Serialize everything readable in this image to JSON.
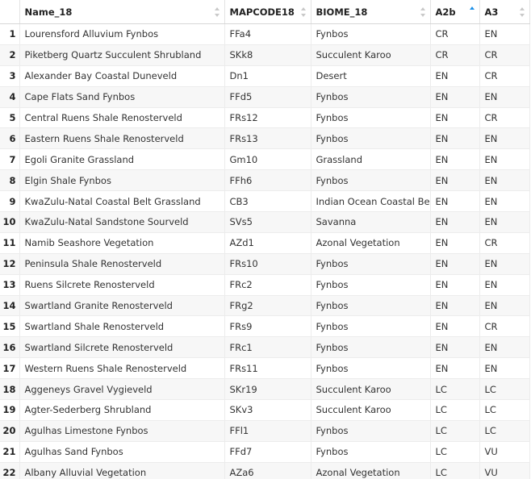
{
  "columns": [
    {
      "label": "",
      "sort": "none"
    },
    {
      "label": "Name_18",
      "sort": "none"
    },
    {
      "label": "MAPCODE18",
      "sort": "none"
    },
    {
      "label": "BIOME_18",
      "sort": "none"
    },
    {
      "label": "A2b",
      "sort": "ascending"
    },
    {
      "label": "A3",
      "sort": "none"
    }
  ],
  "accent_color": "#1a8fe8",
  "rows": [
    [
      "1",
      "Lourensford Alluvium Fynbos",
      "FFa4",
      "Fynbos",
      "CR",
      "EN"
    ],
    [
      "2",
      "Piketberg Quartz Succulent Shrubland",
      "SKk8",
      "Succulent Karoo",
      "CR",
      "CR"
    ],
    [
      "3",
      "Alexander Bay Coastal Duneveld",
      "Dn1",
      "Desert",
      "EN",
      "CR"
    ],
    [
      "4",
      "Cape Flats Sand Fynbos",
      "FFd5",
      "Fynbos",
      "EN",
      "EN"
    ],
    [
      "5",
      "Central Ruens Shale Renosterveld",
      "FRs12",
      "Fynbos",
      "EN",
      "CR"
    ],
    [
      "6",
      "Eastern Ruens Shale Renosterveld",
      "FRs13",
      "Fynbos",
      "EN",
      "EN"
    ],
    [
      "7",
      "Egoli Granite Grassland",
      "Gm10",
      "Grassland",
      "EN",
      "EN"
    ],
    [
      "8",
      "Elgin Shale Fynbos",
      "FFh6",
      "Fynbos",
      "EN",
      "EN"
    ],
    [
      "9",
      "KwaZulu-Natal Coastal Belt Grassland",
      "CB3",
      "Indian Ocean Coastal Belt",
      "EN",
      "EN"
    ],
    [
      "10",
      "KwaZulu-Natal Sandstone Sourveld",
      "SVs5",
      "Savanna",
      "EN",
      "EN"
    ],
    [
      "11",
      "Namib Seashore Vegetation",
      "AZd1",
      "Azonal Vegetation",
      "EN",
      "CR"
    ],
    [
      "12",
      "Peninsula Shale Renosterveld",
      "FRs10",
      "Fynbos",
      "EN",
      "EN"
    ],
    [
      "13",
      "Ruens Silcrete Renosterveld",
      "FRc2",
      "Fynbos",
      "EN",
      "EN"
    ],
    [
      "14",
      "Swartland Granite Renosterveld",
      "FRg2",
      "Fynbos",
      "EN",
      "EN"
    ],
    [
      "15",
      "Swartland Shale Renosterveld",
      "FRs9",
      "Fynbos",
      "EN",
      "CR"
    ],
    [
      "16",
      "Swartland Silcrete Renosterveld",
      "FRc1",
      "Fynbos",
      "EN",
      "EN"
    ],
    [
      "17",
      "Western Ruens Shale Renosterveld",
      "FRs11",
      "Fynbos",
      "EN",
      "EN"
    ],
    [
      "18",
      "Aggeneys Gravel Vygieveld",
      "SKr19",
      "Succulent Karoo",
      "LC",
      "LC"
    ],
    [
      "19",
      "Agter-Sederberg Shrubland",
      "SKv3",
      "Succulent Karoo",
      "LC",
      "LC"
    ],
    [
      "20",
      "Agulhas Limestone Fynbos",
      "FFl1",
      "Fynbos",
      "LC",
      "LC"
    ],
    [
      "21",
      "Agulhas Sand Fynbos",
      "FFd7",
      "Fynbos",
      "LC",
      "VU"
    ],
    [
      "22",
      "Albany Alluvial Vegetation",
      "AZa6",
      "Azonal Vegetation",
      "LC",
      "VU"
    ]
  ]
}
